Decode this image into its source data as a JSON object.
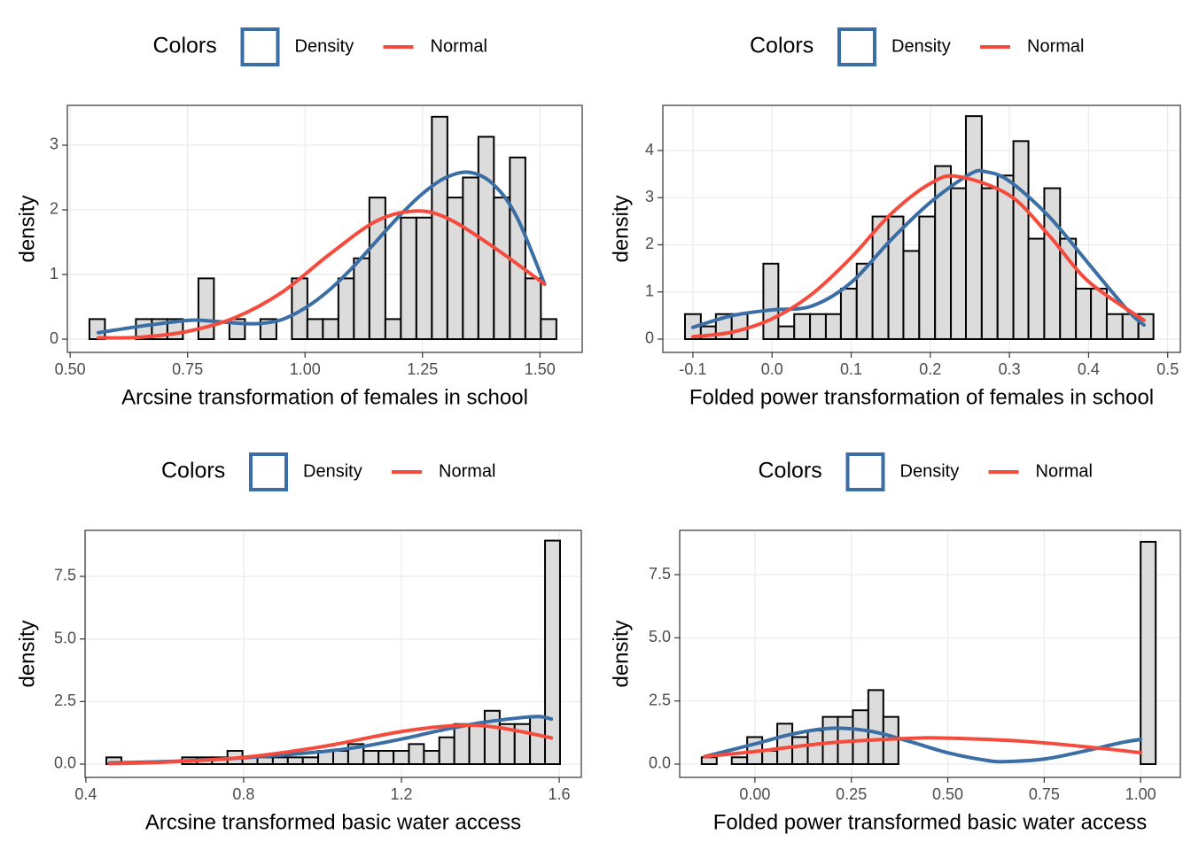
{
  "chart_data": [
    {
      "type": "histogram",
      "legend_title": "Colors",
      "x_label": "Arcsine transformation of females in school",
      "y_label": "density",
      "fill": "#dcdcdc",
      "grid": true,
      "legend": "top",
      "bins": [
        0.541,
        0.574,
        0.607,
        0.64,
        0.674,
        0.707,
        0.74,
        0.773,
        0.806,
        0.839,
        0.872,
        0.905,
        0.939,
        0.972,
        1.005,
        1.038,
        1.071,
        1.104,
        1.137,
        1.171,
        1.204,
        1.237,
        1.27,
        1.303,
        1.336,
        1.369,
        1.402,
        1.436,
        1.469,
        1.502,
        1.535
      ],
      "values": [
        0.31,
        0,
        0,
        0.31,
        0.31,
        0.31,
        0,
        0.94,
        0,
        0.31,
        0,
        0.31,
        0,
        0.94,
        0.31,
        0.31,
        0.94,
        1.25,
        2.19,
        0.31,
        1.88,
        1.88,
        3.44,
        2.19,
        2.5,
        3.13,
        2.19,
        2.81,
        0.94,
        0.31
      ],
      "series": [
        {
          "name": "Density",
          "color": "#3a6ea5",
          "x": [
            0.56,
            0.65,
            0.75,
            0.8,
            0.85,
            0.9,
            0.95,
            1.0,
            1.05,
            1.1,
            1.15,
            1.2,
            1.25,
            1.3,
            1.35,
            1.4,
            1.45,
            1.51
          ],
          "values": [
            0.1,
            0.2,
            0.29,
            0.28,
            0.25,
            0.24,
            0.3,
            0.48,
            0.75,
            1.1,
            1.5,
            1.9,
            2.25,
            2.5,
            2.58,
            2.4,
            1.9,
            0.85
          ]
        },
        {
          "name": "Normal",
          "color": "#f44b3c",
          "x": [
            0.56,
            0.65,
            0.75,
            0.85,
            0.95,
            1.05,
            1.15,
            1.23,
            1.3,
            1.4,
            1.51
          ],
          "values": [
            0.02,
            0.03,
            0.12,
            0.33,
            0.72,
            1.3,
            1.82,
            1.98,
            1.88,
            1.43,
            0.85
          ]
        }
      ],
      "xlim": [
        0.494,
        1.59
      ],
      "ylim": [
        -0.205,
        3.616
      ],
      "xticks": [
        {
          "value": 0.5,
          "label": "0.50"
        },
        0.75,
        {
          "value": 1,
          "label": "1.00"
        },
        1.25,
        {
          "value": 1.5,
          "label": "1.50"
        }
      ],
      "yticks": [
        0,
        1,
        2,
        3
      ]
    },
    {
      "type": "histogram",
      "legend_title": "Colors",
      "x_label": "Folded power transformation of females in school",
      "y_label": "density",
      "fill": "#dcdcdc",
      "grid": true,
      "legend": "top",
      "bins": [
        -0.11,
        -0.09,
        -0.071,
        -0.051,
        -0.031,
        -0.011,
        0.008,
        0.028,
        0.048,
        0.068,
        0.087,
        0.107,
        0.127,
        0.147,
        0.166,
        0.186,
        0.206,
        0.226,
        0.245,
        0.265,
        0.285,
        0.305,
        0.324,
        0.344,
        0.364,
        0.384,
        0.403,
        0.423,
        0.443,
        0.463,
        0.482
      ],
      "values": [
        0.53,
        0.27,
        0.53,
        0.53,
        0,
        1.6,
        0.27,
        0.53,
        0.53,
        0.53,
        1.07,
        1.6,
        2.6,
        2.6,
        1.87,
        2.6,
        3.67,
        3.2,
        4.73,
        3.2,
        3.47,
        4.2,
        2.13,
        3.2,
        2.13,
        1.07,
        1.07,
        0.53,
        0.53,
        0.53
      ],
      "series": [
        {
          "name": "Density",
          "color": "#3a6ea5",
          "x": [
            -0.1,
            -0.05,
            0,
            0.05,
            0.1,
            0.15,
            0.2,
            0.25,
            0.27,
            0.3,
            0.35,
            0.4,
            0.45,
            0.47
          ],
          "values": [
            0.25,
            0.5,
            0.62,
            0.7,
            1.2,
            2.1,
            2.9,
            3.5,
            3.55,
            3.35,
            2.6,
            1.6,
            0.6,
            0.3
          ]
        },
        {
          "name": "Normal",
          "color": "#f44b3c",
          "x": [
            -0.1,
            -0.05,
            0,
            0.05,
            0.1,
            0.15,
            0.2,
            0.235,
            0.3,
            0.35,
            0.4,
            0.47
          ],
          "values": [
            0.05,
            0.15,
            0.43,
            0.95,
            1.73,
            2.65,
            3.3,
            3.45,
            3.05,
            2.2,
            1.22,
            0.4
          ]
        }
      ],
      "xlim": [
        -0.138,
        0.516
      ],
      "ylim": [
        -0.282,
        4.958
      ],
      "xticks": [
        -0.1,
        {
          "value": 0,
          "label": "0.0"
        },
        0.1,
        0.2,
        0.3,
        0.4,
        0.5
      ],
      "yticks": [
        0,
        1,
        2,
        3,
        4
      ]
    },
    {
      "type": "histogram",
      "legend_title": "Colors",
      "x_label": "Arcsine transformed basic water access",
      "y_label": "density",
      "fill": "#dcdcdc",
      "grid": true,
      "legend": "top",
      "bins": [
        0.452,
        0.49,
        0.528,
        0.567,
        0.605,
        0.644,
        0.682,
        0.72,
        0.759,
        0.797,
        0.835,
        0.874,
        0.912,
        0.95,
        0.989,
        1.027,
        1.065,
        1.104,
        1.142,
        1.18,
        1.219,
        1.257,
        1.296,
        1.334,
        1.372,
        1.411,
        1.449,
        1.487,
        1.526,
        1.564,
        1.602
      ],
      "values": [
        0.27,
        0,
        0,
        0,
        0,
        0.27,
        0.27,
        0.27,
        0.53,
        0.27,
        0.27,
        0.27,
        0.27,
        0.27,
        0.53,
        0.53,
        0.8,
        0.53,
        0.53,
        0.53,
        0.8,
        0.53,
        1.07,
        1.6,
        1.6,
        2.13,
        1.6,
        1.6,
        1.87,
        8.93
      ],
      "series": [
        {
          "name": "Density",
          "color": "#3a6ea5",
          "x": [
            0.46,
            0.6,
            0.8,
            1.0,
            1.1,
            1.2,
            1.3,
            1.4,
            1.5,
            1.55,
            1.58
          ],
          "values": [
            0.05,
            0.1,
            0.25,
            0.5,
            0.7,
            1.0,
            1.35,
            1.65,
            1.85,
            1.9,
            1.8
          ]
        },
        {
          "name": "Normal",
          "color": "#f44b3c",
          "x": [
            0.46,
            0.6,
            0.8,
            1.0,
            1.2,
            1.35,
            1.45,
            1.58
          ],
          "values": [
            0.02,
            0.08,
            0.27,
            0.7,
            1.3,
            1.55,
            1.45,
            1.05
          ]
        }
      ],
      "xlim": [
        0.398,
        1.656
      ],
      "ylim": [
        -0.531,
        9.339
      ],
      "xticks": [
        0.4,
        0.8,
        1.2,
        1.6
      ],
      "yticks": [
        {
          "value": 0,
          "label": "0.0"
        },
        2.5,
        {
          "value": 5,
          "label": "5.0"
        },
        7.5
      ]
    },
    {
      "type": "histogram",
      "legend_title": "Colors",
      "x_label": "Folded power transformed basic water access",
      "y_label": "density",
      "fill": "#dcdcdc",
      "grid": true,
      "legend": "top",
      "bins": [
        -0.138,
        -0.099,
        -0.06,
        -0.02,
        0.019,
        0.058,
        0.097,
        0.137,
        0.176,
        0.215,
        0.254,
        0.294,
        0.333,
        0.372,
        0.411,
        0.451,
        0.49,
        0.529,
        0.568,
        0.608,
        0.647,
        0.686,
        0.725,
        0.765,
        0.804,
        0.843,
        0.882,
        0.922,
        0.961,
        1.0,
        1.039
      ],
      "values": [
        0.27,
        0,
        0.27,
        1.07,
        0.53,
        1.6,
        1.07,
        1.33,
        1.87,
        1.87,
        2.13,
        2.93,
        1.87,
        0,
        0,
        0,
        0,
        0,
        0,
        0,
        0,
        0,
        0,
        0,
        0,
        0,
        0,
        0,
        0,
        8.8
      ],
      "series": [
        {
          "name": "Density",
          "color": "#3a6ea5",
          "x": [
            -0.13,
            0,
            0.1,
            0.2,
            0.3,
            0.4,
            0.5,
            0.6,
            0.65,
            0.75,
            0.85,
            0.95,
            1.0
          ],
          "values": [
            0.3,
            0.8,
            1.2,
            1.42,
            1.3,
            0.9,
            0.45,
            0.15,
            0.1,
            0.2,
            0.5,
            0.85,
            0.98
          ]
        },
        {
          "name": "Normal",
          "color": "#f44b3c",
          "x": [
            -0.13,
            0,
            0.2,
            0.4,
            0.5,
            0.7,
            0.9,
            1.0
          ],
          "values": [
            0.3,
            0.5,
            0.85,
            1.02,
            1.03,
            0.9,
            0.62,
            0.45
          ]
        }
      ],
      "xlim": [
        -0.195,
        1.103
      ],
      "ylim": [
        -0.526,
        9.253
      ],
      "xticks": [
        {
          "value": 0,
          "label": "0.00"
        },
        0.25,
        {
          "value": 0.5,
          "label": "0.50"
        },
        0.75,
        {
          "value": 1,
          "label": "1.00"
        }
      ],
      "yticks": [
        {
          "value": 0,
          "label": "0.0"
        },
        2.5,
        {
          "value": 5,
          "label": "5.0"
        },
        7.5
      ]
    }
  ]
}
